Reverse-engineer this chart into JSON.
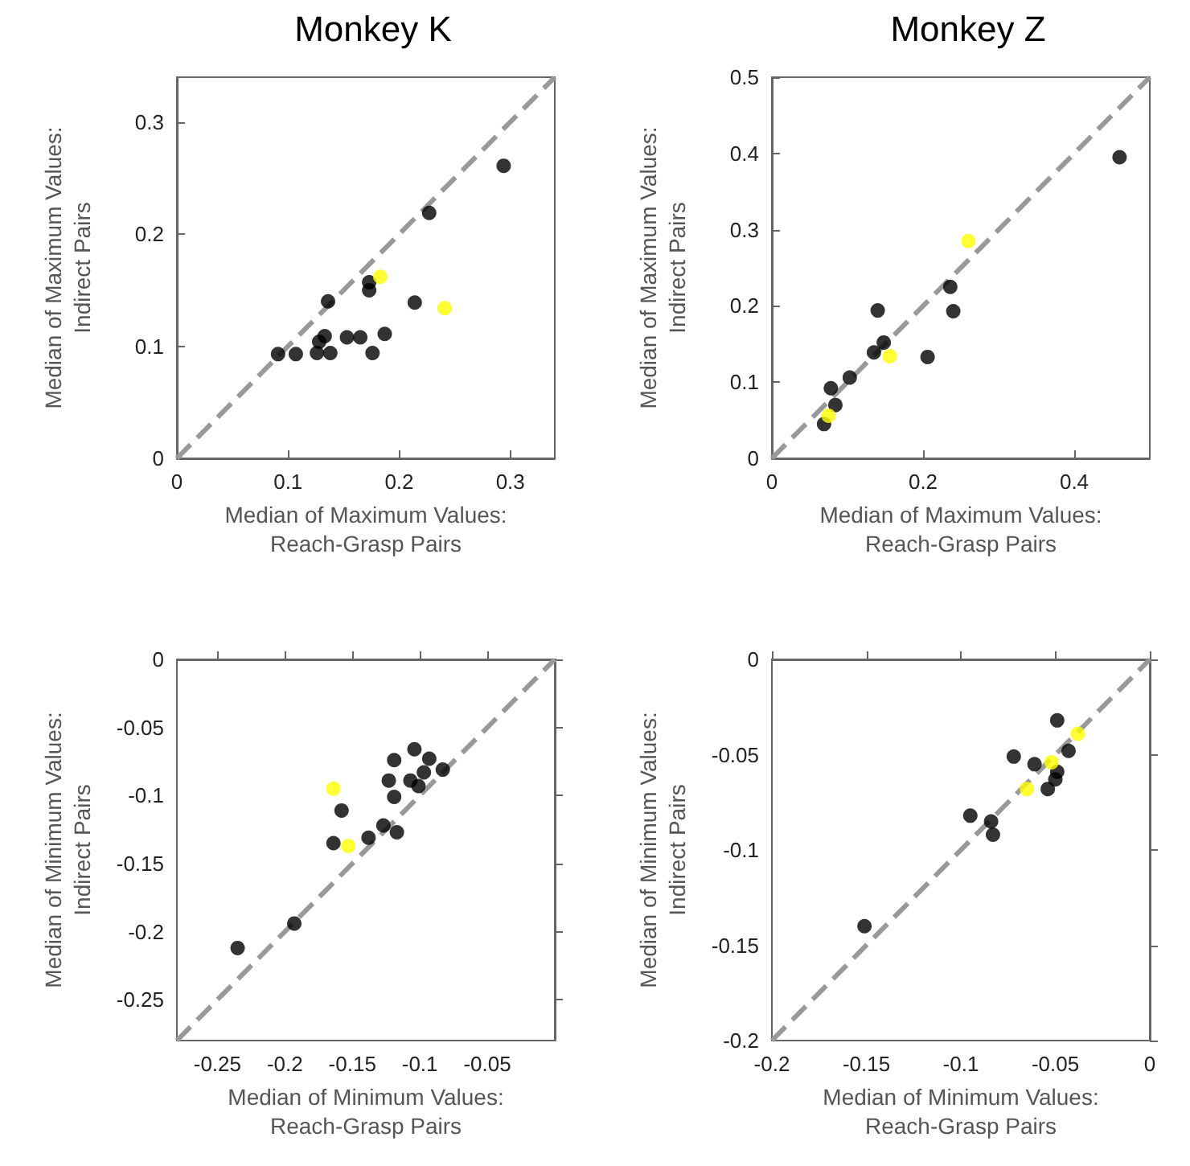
{
  "chart_data": [
    {
      "type": "scatter",
      "title": "Monkey K",
      "xlabel": "Median of Maximum Values:\nReach-Grasp Pairs",
      "ylabel": "Median of Maximum Values:\nIndirect Pairs",
      "xlim": [
        0,
        0.34
      ],
      "ylim": [
        0,
        0.34
      ],
      "xticks": [
        0,
        0.1,
        0.2,
        0.3
      ],
      "yticks": [
        0,
        0.1,
        0.2,
        0.3
      ],
      "marker": "circle",
      "grid": false,
      "series": [
        {
          "type": "line",
          "color": "#999999",
          "line_style": "dashed",
          "marker": "none",
          "x": [
            0,
            0.34
          ],
          "values": [
            0,
            0.34
          ]
        },
        {
          "color": "#000000",
          "x": [
            0.294,
            0.227,
            0.173,
            0.173,
            0.214,
            0.136,
            0.091,
            0.107,
            0.126,
            0.138,
            0.133,
            0.153,
            0.165,
            0.187,
            0.176,
            0.128
          ],
          "values": [
            0.261,
            0.219,
            0.15,
            0.157,
            0.139,
            0.14,
            0.093,
            0.093,
            0.094,
            0.094,
            0.109,
            0.108,
            0.108,
            0.111,
            0.094,
            0.104
          ]
        },
        {
          "color": "#ffff00",
          "x": [
            0.183,
            0.241
          ],
          "values": [
            0.162,
            0.134
          ]
        }
      ]
    },
    {
      "type": "scatter",
      "title": "Monkey Z",
      "xlabel": "Median of Maximum Values:\nReach-Grasp Pairs",
      "ylabel": "Median of Maximum Values:\nIndirect Pairs",
      "xlim": [
        0,
        0.5
      ],
      "ylim": [
        0,
        0.5
      ],
      "xticks": [
        0,
        0.2,
        0.4
      ],
      "yticks": [
        0,
        0.1,
        0.2,
        0.3,
        0.4,
        0.5
      ],
      "marker": "circle",
      "grid": false,
      "series": [
        {
          "type": "line",
          "color": "#999999",
          "line_style": "dashed",
          "marker": "none",
          "x": [
            0,
            0.5
          ],
          "values": [
            0,
            0.5
          ]
        },
        {
          "color": "#000000",
          "x": [
            0.46,
            0.236,
            0.24,
            0.206,
            0.14,
            0.148,
            0.135,
            0.103,
            0.078,
            0.084,
            0.069
          ],
          "values": [
            0.395,
            0.225,
            0.193,
            0.133,
            0.194,
            0.152,
            0.139,
            0.106,
            0.092,
            0.07,
            0.045
          ]
        },
        {
          "color": "#ffff00",
          "x": [
            0.26,
            0.156,
            0.075
          ],
          "values": [
            0.285,
            0.134,
            0.056
          ]
        }
      ]
    },
    {
      "type": "scatter",
      "xlabel": "Median of Minimum Values:\nReach-Grasp Pairs",
      "ylabel": "Median of Minimum Values:\nIndirect Pairs",
      "xlim": [
        -0.28,
        0
      ],
      "ylim": [
        -0.28,
        0
      ],
      "xticks": [
        -0.25,
        -0.2,
        -0.15,
        -0.1,
        -0.05
      ],
      "yticks": [
        -0.25,
        -0.2,
        -0.15,
        -0.1,
        -0.05,
        0
      ],
      "marker": "circle",
      "grid": false,
      "series": [
        {
          "type": "line",
          "color": "#999999",
          "line_style": "dashed",
          "marker": "none",
          "x": [
            -0.28,
            0
          ],
          "values": [
            -0.28,
            0
          ]
        },
        {
          "color": "#000000",
          "x": [
            -0.235,
            -0.193,
            -0.158,
            -0.164,
            -0.138,
            -0.127,
            -0.117,
            -0.119,
            -0.123,
            -0.119,
            -0.104,
            -0.107,
            -0.097,
            -0.101,
            -0.083,
            -0.093
          ],
          "values": [
            -0.212,
            -0.194,
            -0.111,
            -0.135,
            -0.131,
            -0.122,
            -0.127,
            -0.074,
            -0.089,
            -0.101,
            -0.066,
            -0.089,
            -0.083,
            -0.093,
            -0.081,
            -0.073
          ]
        },
        {
          "color": "#ffff00",
          "x": [
            -0.164,
            -0.153
          ],
          "values": [
            -0.095,
            -0.137
          ]
        }
      ]
    },
    {
      "type": "scatter",
      "xlabel": "Median of Minimum Values:\nReach-Grasp Pairs",
      "ylabel": "Median of Minimum Values:\nIndirect Pairs",
      "xlim": [
        -0.2,
        0
      ],
      "ylim": [
        -0.2,
        0
      ],
      "xticks": [
        -0.2,
        -0.15,
        -0.1,
        -0.05,
        0
      ],
      "yticks": [
        -0.2,
        -0.15,
        -0.1,
        -0.05,
        0
      ],
      "marker": "circle",
      "grid": false,
      "series": [
        {
          "type": "line",
          "color": "#999999",
          "line_style": "dashed",
          "marker": "none",
          "x": [
            -0.2,
            0
          ],
          "values": [
            -0.2,
            0
          ]
        },
        {
          "color": "#000000",
          "x": [
            -0.151,
            -0.095,
            -0.084,
            -0.083,
            -0.072,
            -0.061,
            -0.049,
            -0.043,
            -0.049,
            -0.054,
            -0.05
          ],
          "values": [
            -0.14,
            -0.082,
            -0.085,
            -0.092,
            -0.051,
            -0.055,
            -0.032,
            -0.048,
            -0.059,
            -0.068,
            -0.063
          ]
        },
        {
          "color": "#ffff00",
          "x": [
            -0.065,
            -0.052,
            -0.038
          ],
          "values": [
            -0.068,
            -0.054,
            -0.039
          ]
        }
      ]
    }
  ]
}
